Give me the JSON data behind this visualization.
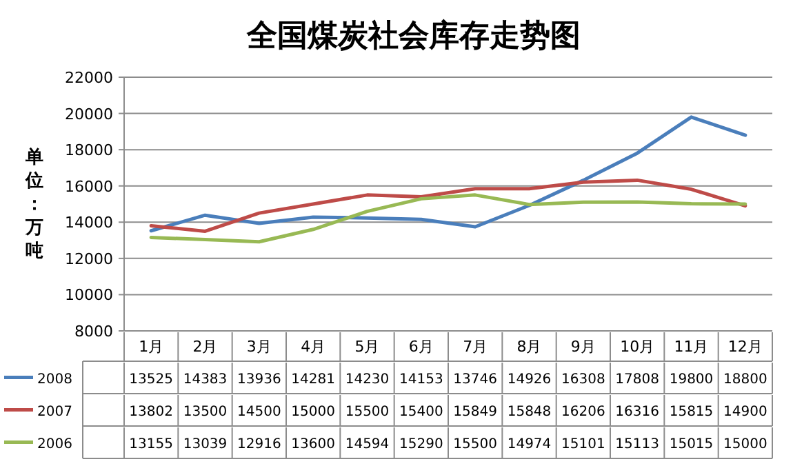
{
  "chart_data": {
    "type": "line",
    "title": "全国煤炭社会库存走势图",
    "ylabel": "单位：万吨",
    "categories": [
      "1月",
      "2月",
      "3月",
      "4月",
      "5月",
      "6月",
      "7月",
      "8月",
      "9月",
      "10月",
      "11月",
      "12月"
    ],
    "series": [
      {
        "name": "2008",
        "color": "#4a7ebb",
        "values": [
          13525,
          14383,
          13936,
          14281,
          14230,
          14153,
          13746,
          14926,
          16308,
          17808,
          19800,
          18800
        ]
      },
      {
        "name": "2007",
        "color": "#be4b48",
        "values": [
          13802,
          13500,
          14500,
          15000,
          15500,
          15400,
          15849,
          15848,
          16206,
          16316,
          15815,
          14900
        ]
      },
      {
        "name": "2006",
        "color": "#98b954",
        "values": [
          13155,
          13039,
          12916,
          13600,
          14594,
          15290,
          15500,
          14974,
          15101,
          15113,
          15015,
          15000
        ]
      }
    ],
    "ylim": [
      8000,
      22000
    ],
    "yticks": [
      8000,
      10000,
      12000,
      14000,
      16000,
      18000,
      20000,
      22000
    ],
    "grid": "y",
    "legend": "bottom left",
    "data_labels": true,
    "marker": "none",
    "line_style": "solid"
  }
}
